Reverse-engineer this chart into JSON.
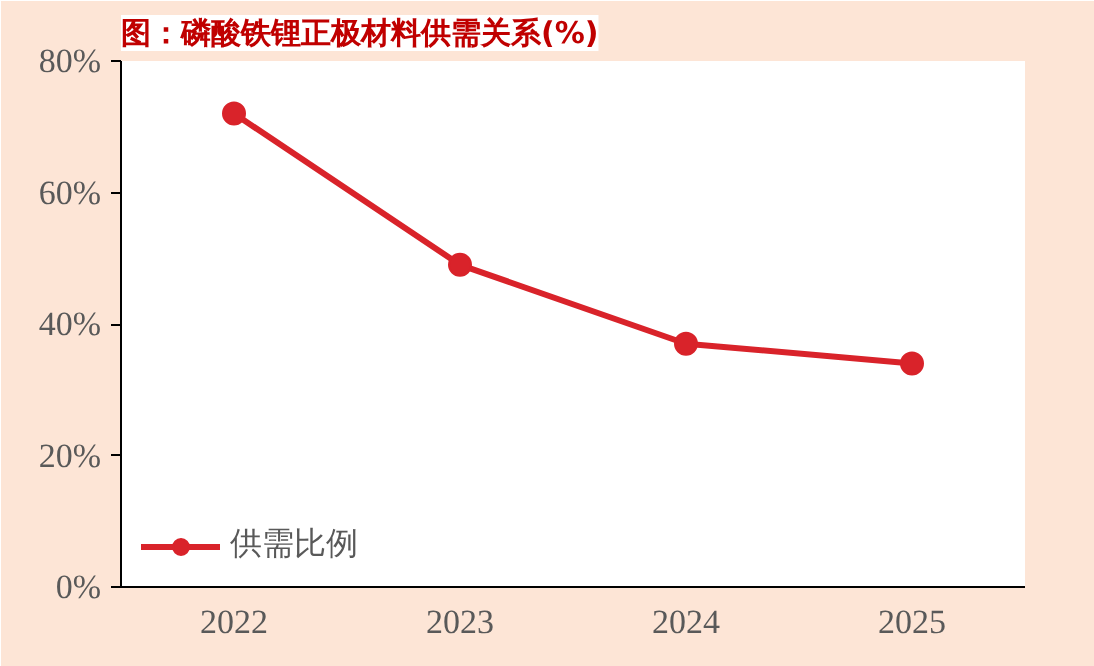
{
  "chart_data": {
    "type": "line",
    "title": "图：磷酸铁锂正极材料供需关系(%)",
    "categories": [
      "2022",
      "2023",
      "2024",
      "2025"
    ],
    "series": [
      {
        "name": "供需比例",
        "color": "#d9232a",
        "values": [
          72,
          49,
          37,
          34
        ]
      }
    ],
    "ylim": [
      0,
      80
    ],
    "yticks": [
      {
        "value": 0,
        "label": "0%"
      },
      {
        "value": 20,
        "label": "20%"
      },
      {
        "value": 40,
        "label": "40%"
      },
      {
        "value": 60,
        "label": "60%"
      },
      {
        "value": 80,
        "label": "80%"
      }
    ],
    "grid": false,
    "legend": "bottom left",
    "marker": "circle",
    "line_style": "solid"
  }
}
